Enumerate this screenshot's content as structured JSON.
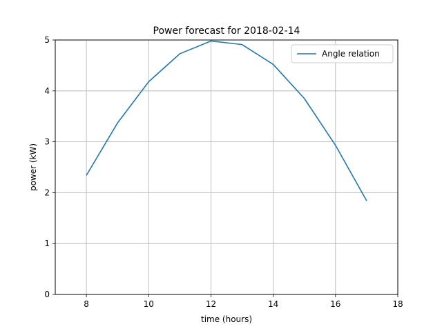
{
  "chart_data": {
    "type": "line",
    "title": "Power forecast for 2018-02-14",
    "xlabel": "time (hours)",
    "ylabel": "power (kW)",
    "xlim": [
      7,
      18
    ],
    "ylim": [
      0,
      5
    ],
    "xticks": [
      8,
      10,
      12,
      14,
      16,
      18
    ],
    "yticks": [
      0,
      1,
      2,
      3,
      4,
      5
    ],
    "grid": true,
    "legend_position": "top-right",
    "series": [
      {
        "name": "Angle relation",
        "color": "#1f77b4",
        "x": [
          8,
          9,
          10,
          11,
          12,
          13,
          14,
          15,
          16,
          17
        ],
        "y": [
          2.34,
          3.37,
          4.18,
          4.73,
          4.98,
          4.91,
          4.52,
          3.85,
          2.93,
          1.84
        ]
      }
    ]
  }
}
